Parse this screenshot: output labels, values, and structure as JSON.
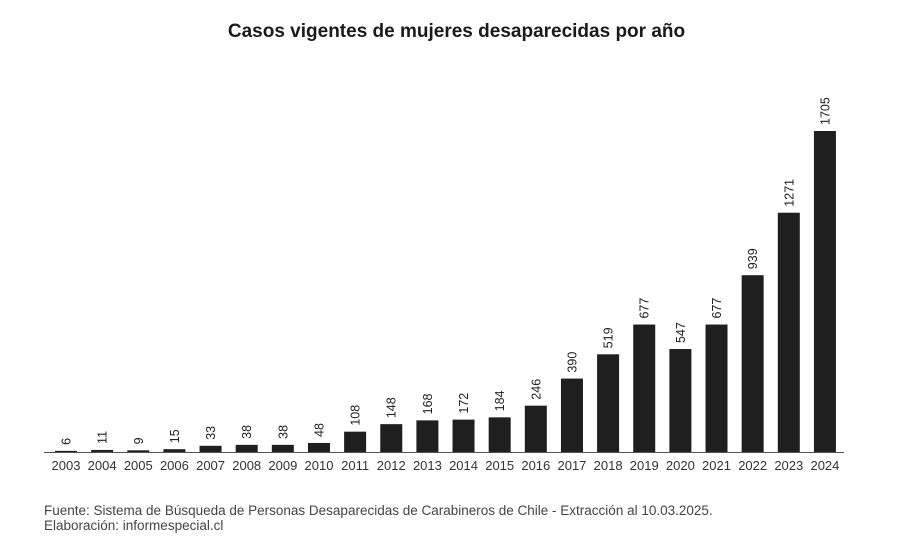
{
  "chart_data": {
    "type": "bar",
    "title": "Casos vigentes de mujeres desaparecidas por año",
    "categories": [
      "2003",
      "2004",
      "2005",
      "2006",
      "2007",
      "2008",
      "2009",
      "2010",
      "2011",
      "2012",
      "2013",
      "2014",
      "2015",
      "2016",
      "2017",
      "2018",
      "2019",
      "2020",
      "2021",
      "2022",
      "2023",
      "2024"
    ],
    "values": [
      6,
      11,
      9,
      15,
      33,
      38,
      38,
      48,
      108,
      148,
      168,
      172,
      184,
      246,
      390,
      519,
      677,
      547,
      677,
      939,
      1271,
      1705
    ],
    "xlabel": "",
    "ylabel": "",
    "bar_color": "#1f1f1f",
    "grid": false,
    "legend": "none"
  },
  "footer": {
    "source": "Fuente: Sistema de Búsqueda de Personas Desaparecidas de Carabineros de Chile - Extracción al 10.03.2025.",
    "credit": "Elaboración: informespecial.cl"
  }
}
